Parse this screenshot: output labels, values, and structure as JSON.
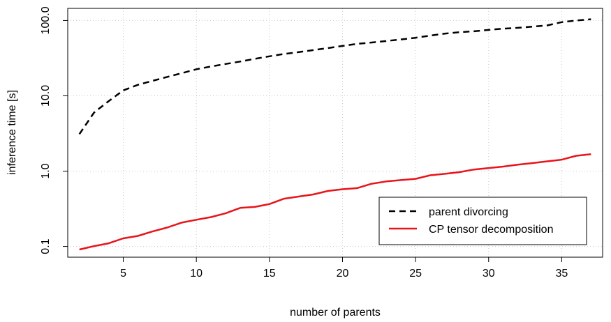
{
  "chart_data": {
    "type": "line",
    "title": "",
    "xlabel": "number of parents",
    "ylabel": "inference time [s]",
    "xlim": [
      1.2,
      37.8
    ],
    "ylim": [
      0.072,
      145
    ],
    "y_scale": "log",
    "x_ticks": [
      5,
      10,
      15,
      20,
      25,
      30,
      35
    ],
    "x_tick_labels": [
      "5",
      "10",
      "15",
      "20",
      "25",
      "30",
      "35"
    ],
    "y_ticks": [
      0.1,
      1.0,
      10.0,
      100.0
    ],
    "y_tick_labels": [
      "0.1",
      "1.0",
      "10.0",
      "100.0"
    ],
    "grid": true,
    "legend_position": "bottom-right",
    "x": [
      2,
      3,
      4,
      5,
      6,
      7,
      8,
      9,
      10,
      11,
      12,
      13,
      14,
      15,
      16,
      17,
      18,
      19,
      20,
      21,
      22,
      23,
      24,
      25,
      26,
      27,
      28,
      29,
      30,
      31,
      32,
      33,
      34,
      35,
      36,
      37
    ],
    "series": [
      {
        "name": "parent divorcing",
        "color": "#000000",
        "dash": "dashed",
        "values": [
          3.1,
          6.0,
          8.5,
          11.8,
          14.0,
          15.8,
          17.8,
          20.0,
          22.5,
          24.5,
          26.5,
          28.5,
          31.0,
          33.5,
          36.0,
          38.0,
          40.5,
          43.0,
          46.0,
          49.0,
          51.0,
          53.5,
          56.0,
          59.0,
          63.0,
          67.0,
          70.0,
          72.0,
          75.0,
          78.0,
          80.0,
          83.0,
          86.0,
          95.0,
          100.0,
          104.0
        ]
      },
      {
        "name": "CP tensor decomposition",
        "color": "#e8141a",
        "dash": "solid",
        "values": [
          0.091,
          0.101,
          0.11,
          0.128,
          0.138,
          0.158,
          0.178,
          0.207,
          0.226,
          0.245,
          0.275,
          0.325,
          0.335,
          0.365,
          0.43,
          0.46,
          0.49,
          0.545,
          0.575,
          0.595,
          0.68,
          0.73,
          0.76,
          0.79,
          0.88,
          0.92,
          0.97,
          1.05,
          1.1,
          1.15,
          1.22,
          1.28,
          1.35,
          1.42,
          1.6,
          1.68
        ]
      }
    ]
  }
}
